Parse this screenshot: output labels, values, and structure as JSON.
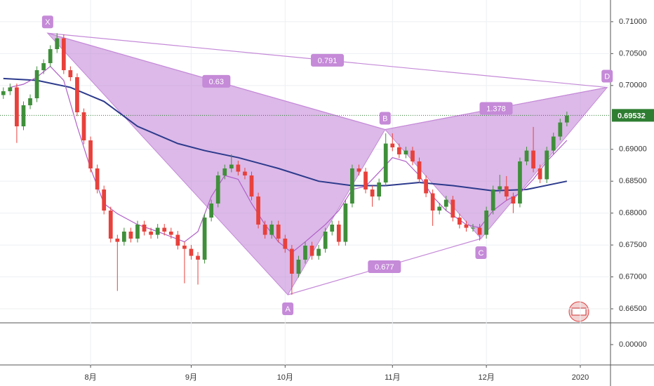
{
  "chart_data": {
    "type": "candlestick",
    "up_color": "#3f8f3a",
    "down_color": "#e8413b",
    "open": [
      0.6985,
      0.6991,
      0.6997,
      0.6936,
      0.6969,
      0.698,
      0.7024,
      0.7035,
      0.7057,
      0.7074,
      0.7024,
      0.7013,
      0.6958,
      0.6914,
      0.687,
      0.6837,
      0.6804,
      0.676,
      0.6755,
      0.6771,
      0.676,
      0.6782,
      0.6771,
      0.6766,
      0.6777,
      0.6771,
      0.6766,
      0.6749,
      0.6744,
      0.6733,
      0.6727,
      0.6793,
      0.6815,
      0.6859,
      0.687,
      0.6876,
      0.6865,
      0.6859,
      0.6826,
      0.6782,
      0.6766,
      0.6782,
      0.676,
      0.6744,
      0.6705,
      0.6727,
      0.6749,
      0.6733,
      0.6744,
      0.6771,
      0.6782,
      0.6755,
      0.6815,
      0.687,
      0.6865,
      0.6837,
      0.6826,
      0.6848,
      0.6909,
      0.6903,
      0.6892,
      0.6898,
      0.6881,
      0.6853,
      0.6831,
      0.6804,
      0.681,
      0.6821,
      0.6793,
      0.6782,
      0.6777,
      0.6777,
      0.6766,
      0.6804,
      0.6837,
      0.6842,
      0.6826,
      0.6815,
      0.6881,
      0.6898,
      0.687,
      0.6853,
      0.6898,
      0.692,
      0.6942
    ],
    "high": [
      0.6997,
      0.7003,
      0.7003,
      0.6975,
      0.6986,
      0.703,
      0.7041,
      0.7063,
      0.7082,
      0.708,
      0.703,
      0.7019,
      0.6964,
      0.692,
      0.6876,
      0.6843,
      0.681,
      0.6766,
      0.6777,
      0.6777,
      0.6788,
      0.6788,
      0.6777,
      0.6783,
      0.6783,
      0.6777,
      0.6772,
      0.6755,
      0.675,
      0.6739,
      0.6799,
      0.6821,
      0.6865,
      0.6876,
      0.6892,
      0.6882,
      0.6871,
      0.6865,
      0.6832,
      0.6788,
      0.6788,
      0.6788,
      0.6766,
      0.675,
      0.6733,
      0.6755,
      0.6755,
      0.675,
      0.6777,
      0.6788,
      0.6788,
      0.6821,
      0.6876,
      0.6876,
      0.6871,
      0.6843,
      0.6854,
      0.6925,
      0.6925,
      0.6909,
      0.6904,
      0.6904,
      0.6887,
      0.6859,
      0.6837,
      0.6816,
      0.6827,
      0.6827,
      0.6799,
      0.6788,
      0.6783,
      0.6783,
      0.681,
      0.6843,
      0.686,
      0.6858,
      0.6832,
      0.6887,
      0.6904,
      0.6935,
      0.6876,
      0.6904,
      0.6926,
      0.6948,
      0.6959
    ],
    "low": [
      0.6979,
      0.6985,
      0.691,
      0.693,
      0.6963,
      0.6974,
      0.7018,
      0.7029,
      0.7051,
      0.7018,
      0.7007,
      0.6952,
      0.6908,
      0.6864,
      0.6831,
      0.6798,
      0.6754,
      0.6678,
      0.6749,
      0.6754,
      0.6754,
      0.6765,
      0.676,
      0.676,
      0.6765,
      0.676,
      0.6743,
      0.669,
      0.6727,
      0.6688,
      0.6721,
      0.6787,
      0.6809,
      0.6853,
      0.6864,
      0.6859,
      0.6853,
      0.682,
      0.6776,
      0.676,
      0.676,
      0.6754,
      0.6738,
      0.6672,
      0.6699,
      0.6721,
      0.6727,
      0.6727,
      0.6738,
      0.6765,
      0.6749,
      0.6749,
      0.6809,
      0.6859,
      0.6831,
      0.681,
      0.682,
      0.6842,
      0.6897,
      0.6886,
      0.6886,
      0.6875,
      0.6847,
      0.6825,
      0.678,
      0.6798,
      0.6804,
      0.6787,
      0.6776,
      0.6771,
      0.6771,
      0.6757,
      0.676,
      0.6798,
      0.6831,
      0.682,
      0.68,
      0.6809,
      0.6875,
      0.6864,
      0.6847,
      0.6847,
      0.6892,
      0.6914,
      0.6936
    ],
    "close": [
      0.6991,
      0.6997,
      0.6936,
      0.6969,
      0.698,
      0.7024,
      0.7035,
      0.7057,
      0.7074,
      0.7024,
      0.7013,
      0.6958,
      0.6914,
      0.687,
      0.6837,
      0.6804,
      0.676,
      0.6755,
      0.6771,
      0.676,
      0.6782,
      0.6771,
      0.6766,
      0.6777,
      0.6771,
      0.6766,
      0.6749,
      0.6744,
      0.6733,
      0.6727,
      0.6793,
      0.6815,
      0.6859,
      0.687,
      0.6876,
      0.6865,
      0.6859,
      0.6826,
      0.6782,
      0.6766,
      0.6782,
      0.676,
      0.6744,
      0.6705,
      0.6727,
      0.6749,
      0.6733,
      0.6744,
      0.6771,
      0.6782,
      0.6755,
      0.6815,
      0.687,
      0.6865,
      0.6837,
      0.6826,
      0.6848,
      0.6909,
      0.6903,
      0.6892,
      0.6898,
      0.6881,
      0.6853,
      0.6831,
      0.6804,
      0.681,
      0.6821,
      0.6793,
      0.6782,
      0.6777,
      0.6777,
      0.6766,
      0.6804,
      0.6837,
      0.6842,
      0.6826,
      0.6815,
      0.6881,
      0.6898,
      0.687,
      0.6853,
      0.6898,
      0.692,
      0.6942,
      0.6953
    ],
    "lines": [
      {
        "color": "#2c3a8c",
        "width": 2,
        "x": [
          0,
          5,
          10,
          15,
          20,
          26,
          30,
          35,
          41,
          47,
          52,
          57,
          62,
          67,
          73,
          78,
          84
        ],
        "values": [
          0.7011,
          0.7008,
          0.6997,
          0.6975,
          0.6936,
          0.6909,
          0.6898,
          0.6887,
          0.687,
          0.685,
          0.6843,
          0.6843,
          0.6848,
          0.6843,
          0.6835,
          0.6837,
          0.685
        ]
      },
      {
        "color": "#b05ec8",
        "width": 1.2,
        "x": [
          1,
          3,
          5,
          7,
          9,
          11,
          13,
          15,
          17,
          20,
          23,
          27,
          29,
          31,
          33,
          35,
          37,
          39,
          41,
          43,
          45,
          48,
          50,
          52,
          54,
          56,
          58,
          60,
          62,
          64,
          66,
          69,
          71,
          73,
          75,
          77,
          79,
          81,
          84
        ],
        "values": [
          0.6997,
          0.7002,
          0.7013,
          0.703,
          0.7008,
          0.6936,
          0.687,
          0.6815,
          0.6799,
          0.6782,
          0.6771,
          0.6755,
          0.6771,
          0.6826,
          0.6859,
          0.6853,
          0.6815,
          0.6782,
          0.6755,
          0.6738,
          0.6755,
          0.6782,
          0.6804,
          0.6837,
          0.6842,
          0.6864,
          0.6887,
          0.6881,
          0.6859,
          0.6826,
          0.6804,
          0.6782,
          0.6777,
          0.6804,
          0.682,
          0.6831,
          0.6853,
          0.6881,
          0.6914
        ]
      }
    ],
    "pattern": {
      "color": "#c58ad8",
      "points": [
        {
          "label": "X",
          "x": 6.6,
          "y": 0.7082
        },
        {
          "label": "A",
          "x": 42.4,
          "y": 0.6672
        },
        {
          "label": "B",
          "x": 56.9,
          "y": 0.6931
        },
        {
          "label": "C",
          "x": 71.2,
          "y": 0.676
        },
        {
          "label": "D",
          "x": 90,
          "y": 0.6997
        }
      ],
      "ratios": [
        {
          "label": "0.63",
          "from": 0,
          "to": 2
        },
        {
          "label": "0.791",
          "from": 0,
          "to": 4
        },
        {
          "label": "1.378",
          "from": 2,
          "to": 4
        },
        {
          "label": "0.677",
          "from": 1,
          "to": 3
        }
      ]
    },
    "last_price": {
      "value": 0.69532,
      "label": "0.69532",
      "color": "#2e7d32"
    },
    "xlim": [
      -0.5,
      90.5
    ],
    "xticks": [
      {
        "value": 13,
        "label": "8月"
      },
      {
        "value": 28,
        "label": "9月"
      },
      {
        "value": 42,
        "label": "10月"
      },
      {
        "value": 58,
        "label": "11月"
      },
      {
        "value": 72,
        "label": "12月"
      },
      {
        "value": 86,
        "label": "2020"
      }
    ],
    "ylim": [
      0.6628,
      0.7134
    ],
    "yticks": [
      {
        "value": 0.71,
        "label": "0.71000"
      },
      {
        "value": 0.705,
        "label": "0.70500"
      },
      {
        "value": 0.7,
        "label": "0.70000"
      },
      {
        "value": 0.69,
        "label": "0.69000"
      },
      {
        "value": 0.685,
        "label": "0.68500"
      },
      {
        "value": 0.68,
        "label": "0.68000"
      },
      {
        "value": 0.675,
        "label": "0.67500"
      },
      {
        "value": 0.67,
        "label": "0.67000"
      },
      {
        "value": 0.665,
        "label": "0.66500"
      }
    ],
    "grid": true,
    "pane2_yticks": [
      {
        "value": 0,
        "label": "0.00000"
      }
    ]
  }
}
